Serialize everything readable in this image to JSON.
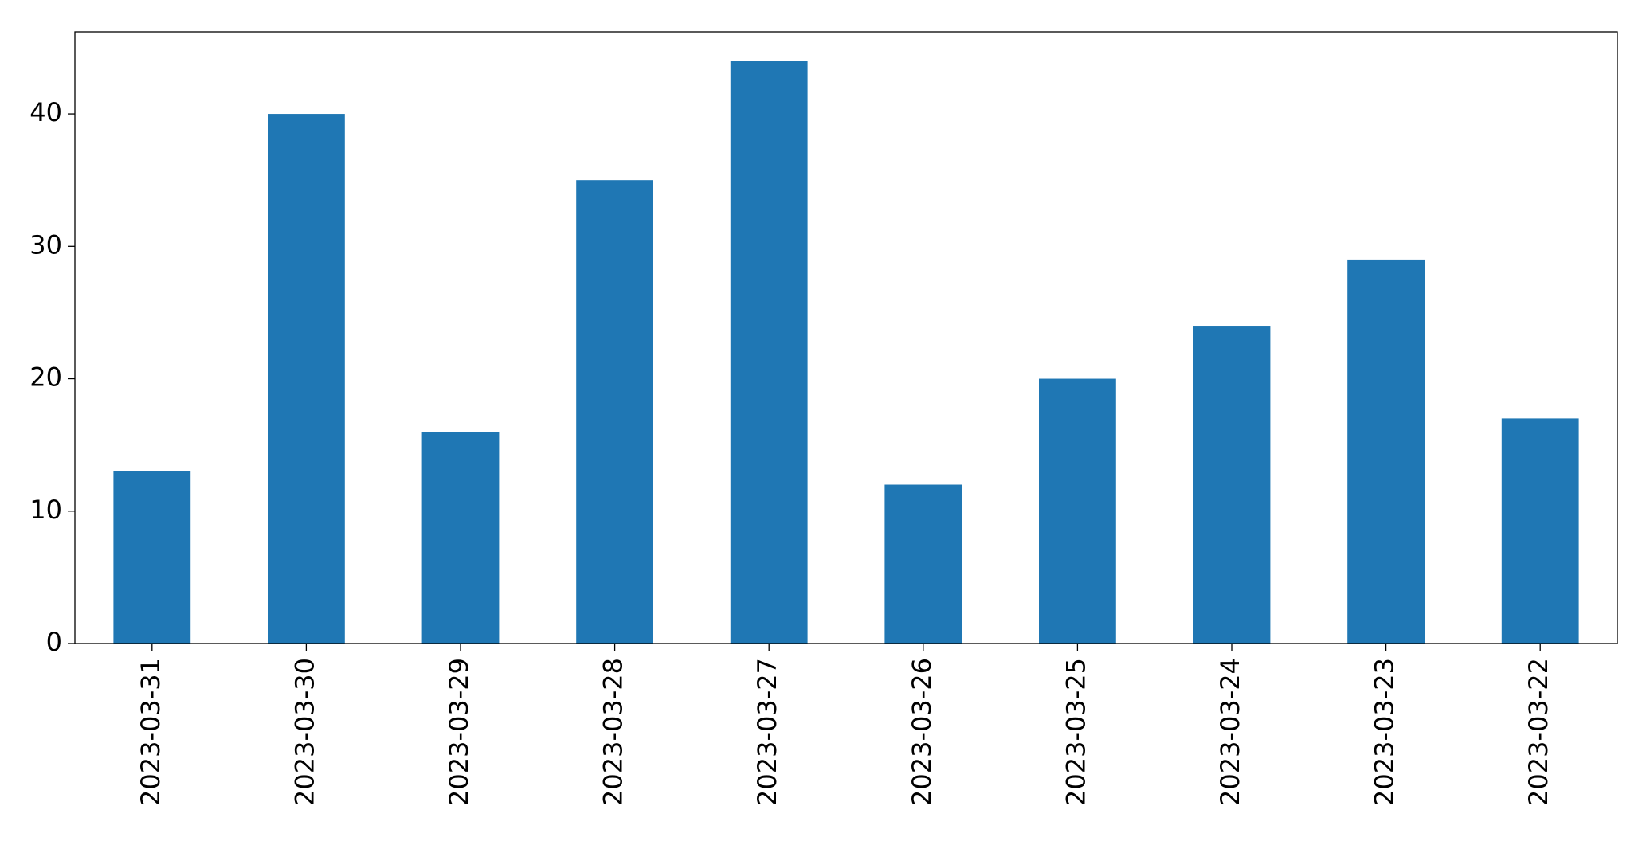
{
  "chart_data": {
    "type": "bar",
    "categories": [
      "2023-03-31",
      "2023-03-30",
      "2023-03-29",
      "2023-03-28",
      "2023-03-27",
      "2023-03-26",
      "2023-03-25",
      "2023-03-24",
      "2023-03-23",
      "2023-03-22"
    ],
    "values": [
      13,
      40,
      16,
      35,
      44,
      12,
      20,
      24,
      29,
      17
    ],
    "color": "#1f77b4",
    "ylim": [
      0,
      46.2
    ],
    "yticks": [
      0,
      10,
      20,
      30,
      40
    ],
    "grid": false
  }
}
